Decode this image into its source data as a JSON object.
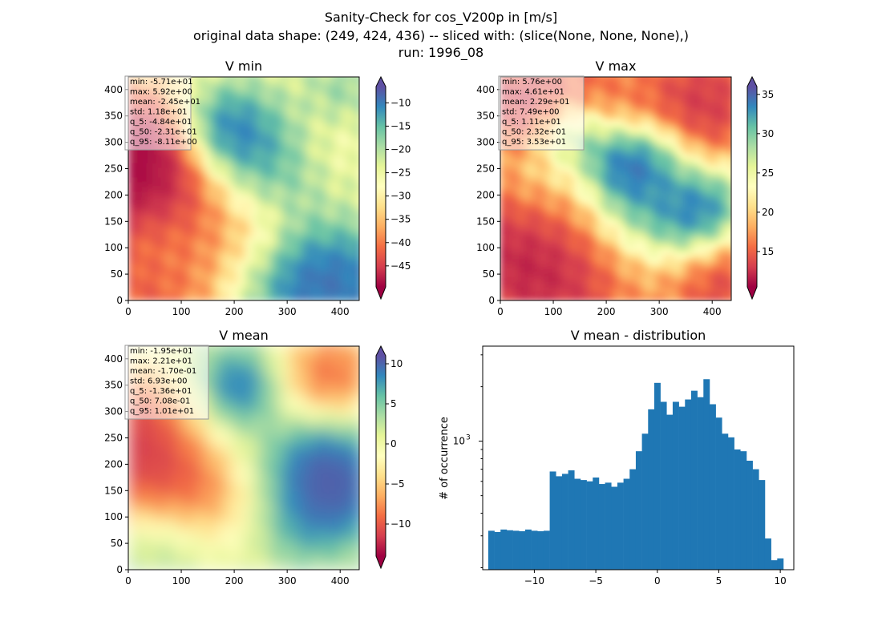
{
  "figure": {
    "title_lines": [
      "Sanity-Check for cos_V200p in [m/s]",
      "original data shape: (249, 424, 436) -- sliced with: (slice(None, None, None),)",
      "run: 1996_08"
    ]
  },
  "chart_data": [
    {
      "type": "heatmap",
      "title": "V min",
      "colormap": "Spectral",
      "xlim": [
        0,
        436
      ],
      "ylim": [
        0,
        424
      ],
      "x_ticks": [
        "0",
        "100",
        "200",
        "300",
        "400"
      ],
      "y_ticks": [
        "0",
        "50",
        "100",
        "150",
        "200",
        "250",
        "300",
        "350",
        "400"
      ],
      "colorbar": {
        "range": [
          -49.5,
          -6.5
        ],
        "ticks": [
          "-10",
          "-15",
          "-20",
          "-25",
          "-30",
          "-35",
          "-40",
          "-45"
        ],
        "extend": "both"
      },
      "stats": [
        "min: -5.71e+01",
        "max: 5.92e+00",
        "mean: -2.45e+01",
        "std: 1.18e+01",
        "q_5: -4.84e+01",
        "q_50: -2.31e+01",
        "q_95: -8.11e+00"
      ],
      "field": [
        [
          10,
          60,
          150,
          -0.9
        ],
        [
          0,
          230,
          110,
          -0.85
        ],
        [
          25,
          300,
          80,
          -0.8
        ],
        [
          420,
          60,
          100,
          0.9
        ],
        [
          300,
          20,
          80,
          0.6
        ],
        [
          250,
          280,
          80,
          0.7
        ],
        [
          180,
          330,
          60,
          0.55
        ],
        [
          30,
          120,
          70,
          0.55
        ],
        [
          400,
          390,
          60,
          0.5
        ],
        [
          370,
          340,
          70,
          -0.35
        ],
        [
          420,
          150,
          60,
          -0.3
        ],
        [
          130,
          330,
          60,
          0.3
        ],
        [
          260,
          120,
          60,
          -0.25
        ],
        [
          180,
          220,
          70,
          -0.1
        ]
      ],
      "field_base": 0.1
    },
    {
      "type": "heatmap",
      "title": "V max",
      "colormap": "Spectral",
      "xlim": [
        0,
        436
      ],
      "ylim": [
        0,
        424
      ],
      "x_ticks": [
        "0",
        "100",
        "200",
        "300",
        "400"
      ],
      "y_ticks": [
        "0",
        "50",
        "100",
        "150",
        "200",
        "250",
        "300",
        "350",
        "400"
      ],
      "colorbar": {
        "range": [
          10.5,
          36
        ],
        "ticks": [
          "15",
          "20",
          "25",
          "30",
          "35"
        ],
        "extend": "both"
      },
      "stats": [
        "min: 5.76e+00",
        "max: 4.61e+01",
        "mean: 2.29e+01",
        "std: 7.49e+00",
        "q_5: 1.11e+01",
        "q_50: 2.32e+01",
        "q_95: 3.53e+01"
      ],
      "field": [
        [
          15,
          100,
          120,
          -0.95
        ],
        [
          380,
          370,
          90,
          -0.85
        ],
        [
          130,
          390,
          80,
          -0.6
        ],
        [
          150,
          20,
          90,
          -0.5
        ],
        [
          420,
          30,
          80,
          -0.7
        ],
        [
          10,
          380,
          60,
          -0.6
        ],
        [
          390,
          180,
          60,
          1.0
        ],
        [
          230,
          260,
          50,
          0.9
        ],
        [
          140,
          320,
          50,
          0.75
        ],
        [
          300,
          280,
          50,
          0.55
        ],
        [
          250,
          190,
          60,
          0.45
        ],
        [
          60,
          220,
          70,
          0.35
        ],
        [
          330,
          140,
          60,
          0.4
        ],
        [
          200,
          100,
          80,
          0.2
        ]
      ],
      "field_base": -0.15
    },
    {
      "type": "heatmap",
      "title": "V mean",
      "colormap": "Spectral",
      "xlim": [
        0,
        436
      ],
      "ylim": [
        0,
        424
      ],
      "x_ticks": [
        "0",
        "100",
        "200",
        "300",
        "400"
      ],
      "y_ticks": [
        "0",
        "50",
        "100",
        "150",
        "200",
        "250",
        "300",
        "350",
        "400"
      ],
      "colorbar": {
        "range": [
          -14,
          11
        ],
        "ticks": [
          "10",
          "5",
          "0",
          "-5",
          "-10"
        ],
        "extend": "both"
      },
      "stats": [
        "min: -1.95e+01",
        "max: 2.21e+01",
        "mean: -1.70e-01",
        "std: 6.93e+00",
        "q_5: -1.36e+01",
        "q_50: 7.08e-01",
        "q_95: 1.01e+01"
      ],
      "field": [
        [
          20,
          210,
          90,
          -1.0
        ],
        [
          380,
          370,
          70,
          -0.75
        ],
        [
          150,
          140,
          70,
          -0.45
        ],
        [
          20,
          330,
          60,
          -0.4
        ],
        [
          400,
          150,
          70,
          1.0
        ],
        [
          210,
          350,
          50,
          0.9
        ],
        [
          360,
          210,
          60,
          0.6
        ],
        [
          320,
          80,
          60,
          0.35
        ],
        [
          60,
          50,
          70,
          0.3
        ],
        [
          250,
          220,
          60,
          0.15
        ],
        [
          100,
          400,
          70,
          0.1
        ]
      ],
      "field_base": 0.15
    },
    {
      "type": "bar",
      "subtype": "histogram",
      "title": "V mean - distribution",
      "xlabel": "",
      "ylabel": "# of occurrence",
      "yscale": "log",
      "xlim": [
        -14.2,
        11.1
      ],
      "ylim": [
        195,
        3350
      ],
      "x_ticks": [
        -10,
        -5,
        0,
        5,
        10
      ],
      "x_tick_labels": [
        "−10",
        "−5",
        "0",
        "5",
        "10"
      ],
      "y_ticks": [
        1000
      ],
      "y_tick_labels": [
        "10"
      ],
      "y_tick_exponent": "3",
      "color": "#1f77b4",
      "x": [
        -13.5,
        -13.0,
        -12.5,
        -12.0,
        -11.5,
        -11.0,
        -10.5,
        -10.0,
        -9.5,
        -9.0,
        -8.5,
        -8.0,
        -7.5,
        -7.0,
        -6.5,
        -6.0,
        -5.5,
        -5.0,
        -4.5,
        -4.0,
        -3.5,
        -3.0,
        -2.5,
        -2.0,
        -1.5,
        -1.0,
        -0.5,
        0.0,
        0.5,
        1.0,
        1.5,
        2.0,
        2.5,
        3.0,
        3.5,
        4.0,
        4.5,
        5.0,
        5.5,
        6.0,
        6.5,
        7.0,
        7.5,
        8.0,
        8.5,
        9.0,
        9.5,
        10.0
      ],
      "values": [
        320,
        315,
        325,
        322,
        320,
        318,
        325,
        320,
        318,
        320,
        680,
        640,
        660,
        690,
        620,
        610,
        600,
        630,
        580,
        590,
        560,
        590,
        620,
        700,
        880,
        1100,
        1500,
        2100,
        1650,
        1400,
        1650,
        1550,
        1700,
        1900,
        1750,
        2200,
        1600,
        1350,
        1100,
        1050,
        900,
        880,
        780,
        700,
        610,
        290,
        220,
        225
      ]
    }
  ]
}
